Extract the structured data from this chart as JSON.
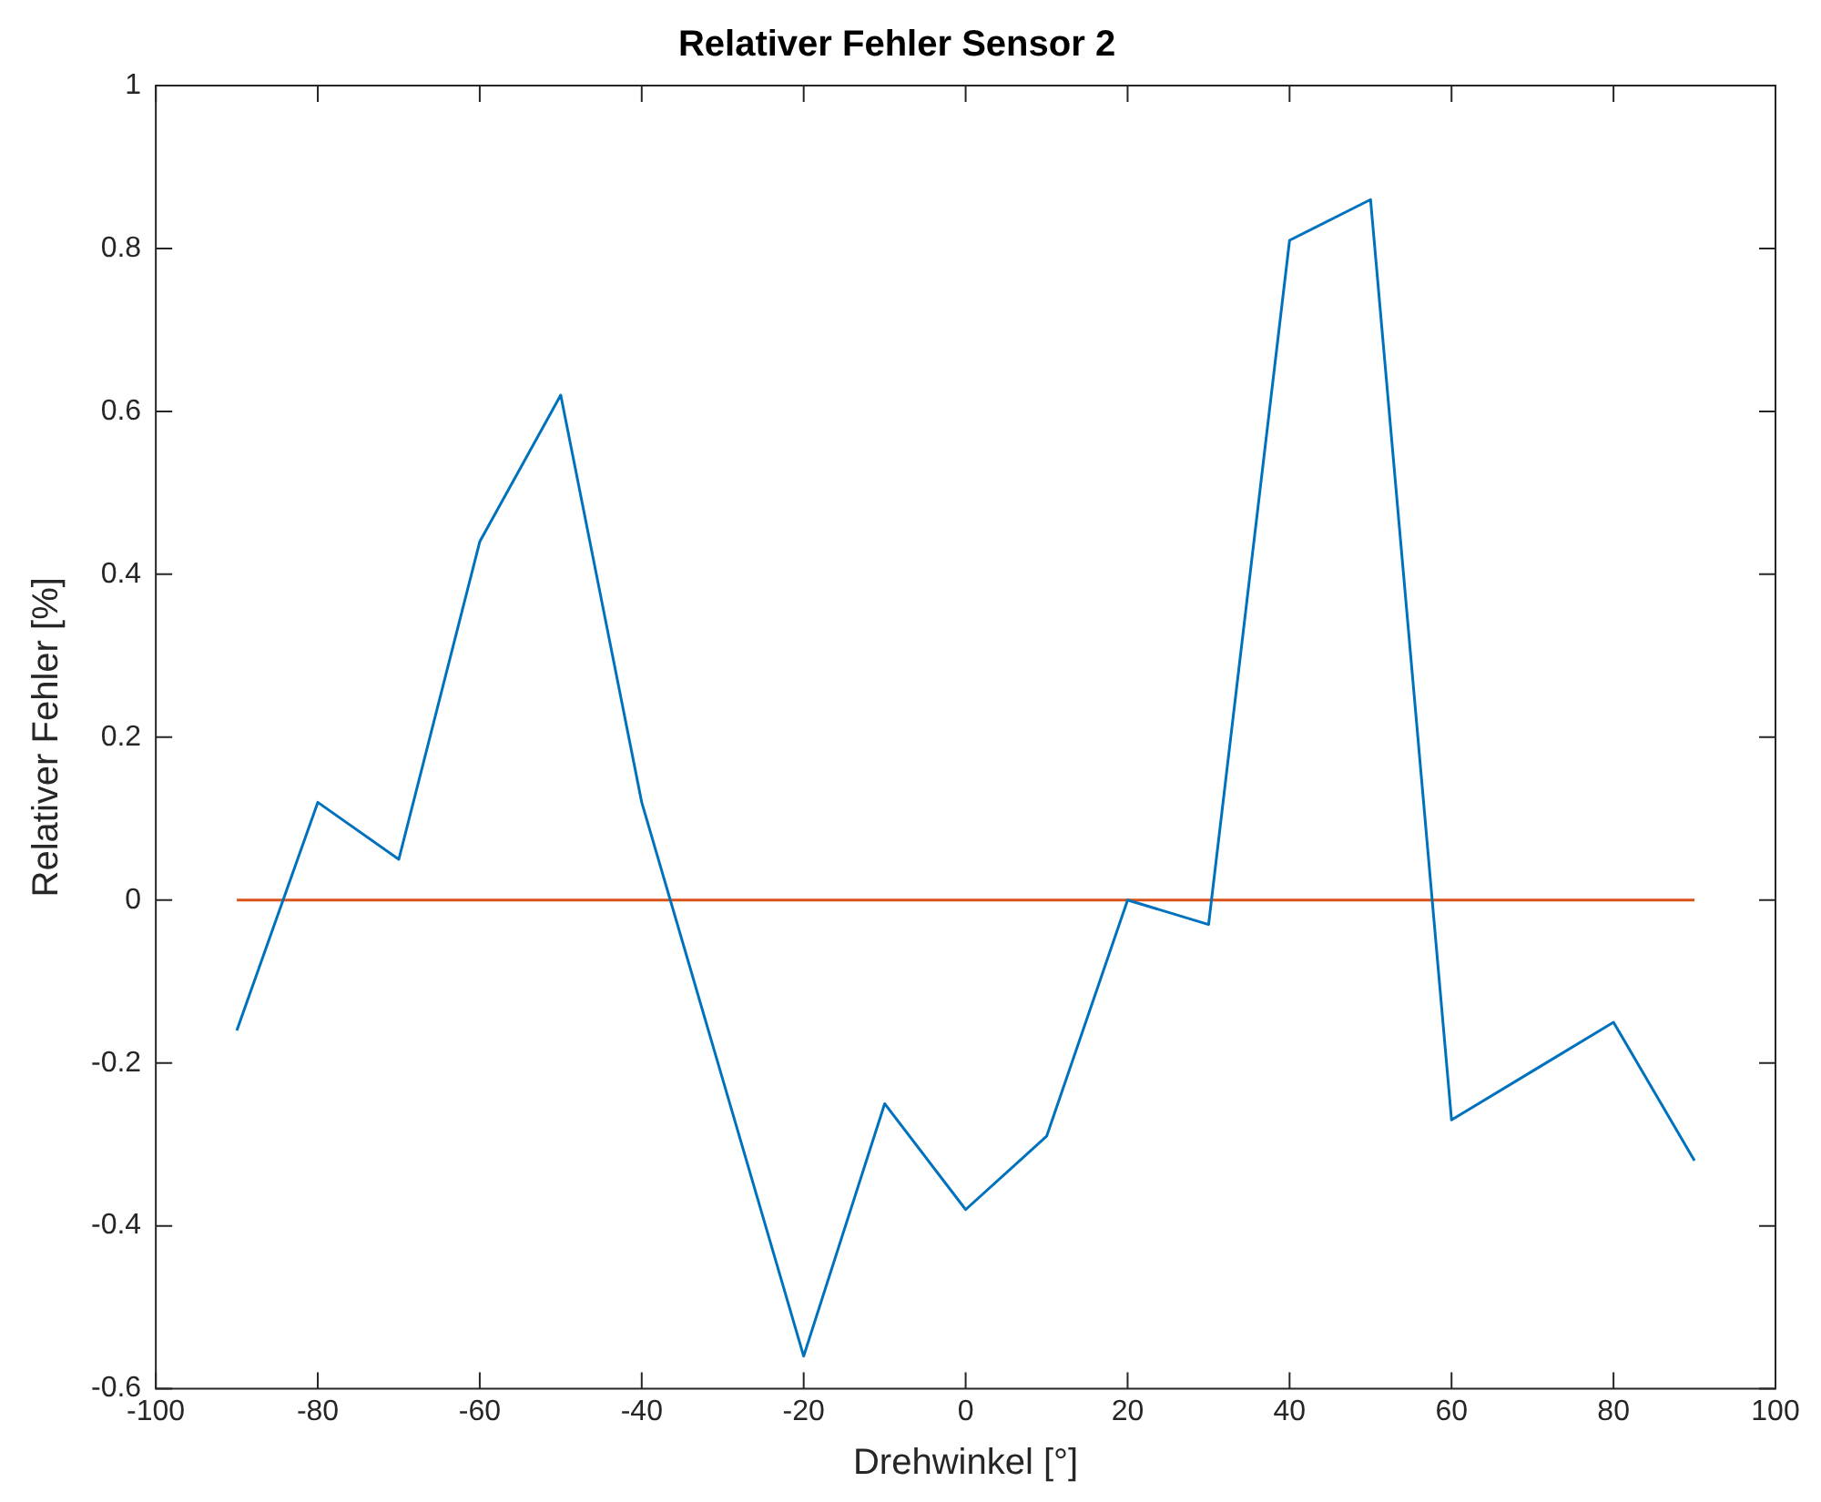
{
  "chart_data": {
    "type": "line",
    "title": "Relativer Fehler Sensor 2",
    "xlabel": "Drehwinkel [°]",
    "ylabel": "Relativer Fehler [%]",
    "x": [
      -90,
      -80,
      -70,
      -60,
      -50,
      -40,
      -30,
      -20,
      -10,
      0,
      10,
      20,
      30,
      40,
      50,
      60,
      70,
      80,
      90
    ],
    "series": [
      {
        "color": "#0072bd",
        "values": [
          -0.16,
          0.12,
          0.05,
          0.44,
          0.62,
          0.12,
          -0.22,
          -0.56,
          -0.25,
          -0.38,
          -0.29,
          0.0,
          -0.03,
          0.81,
          0.86,
          -0.27,
          -0.21,
          -0.15,
          -0.32
        ]
      },
      {
        "color": "#d95319",
        "x": [
          -90,
          90
        ],
        "values": [
          0,
          0
        ]
      }
    ],
    "xlim": [
      -100,
      100
    ],
    "xticks": [
      -100,
      -80,
      -60,
      -40,
      -20,
      0,
      20,
      40,
      60,
      80,
      100
    ],
    "ylim": [
      -0.6,
      1
    ],
    "yticks": [
      -0.6,
      -0.4,
      -0.2,
      0,
      0.2,
      0.4,
      0.6,
      0.8,
      1
    ],
    "grid": false,
    "legend": false,
    "marker": "none",
    "line_style": "solid"
  }
}
